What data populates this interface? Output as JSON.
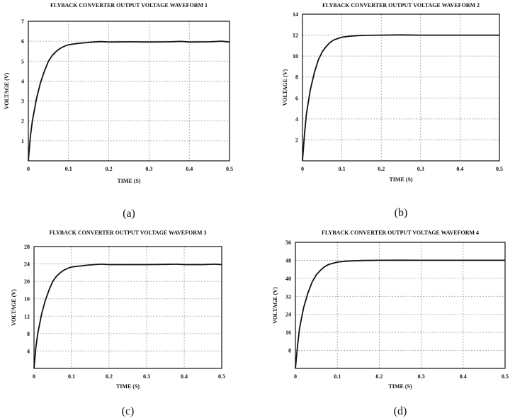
{
  "chart_data": [
    {
      "type": "line",
      "title": "FLYBACK CONVERTER OUTPUT VOLTAGE WAVEFORM 1",
      "xlabel": "TIME (S)",
      "ylabel": "VOLTAGE (V)",
      "caption": "(a)",
      "xlim": [
        0,
        0.5
      ],
      "ylim": [
        0,
        7
      ],
      "x_ticks": [
        0,
        0.1,
        0.2,
        0.3,
        0.4,
        0.5
      ],
      "x_tick_labels": [
        "0",
        "0.1",
        "0.2",
        "0.3",
        "0.4",
        "0.5"
      ],
      "y_ticks": [
        1,
        2,
        3,
        4,
        5,
        6,
        7
      ],
      "y_tick_labels": [
        "1",
        "2",
        "3",
        "4",
        "5",
        "6",
        "7"
      ],
      "grid": true,
      "series": [
        {
          "x": [
            0,
            0.005,
            0.01,
            0.02,
            0.03,
            0.04,
            0.05,
            0.06,
            0.07,
            0.08,
            0.09,
            0.1,
            0.12,
            0.14,
            0.16,
            0.18,
            0.2,
            0.25,
            0.3,
            0.35,
            0.38,
            0.4,
            0.45,
            0.48,
            0.5
          ],
          "y": [
            0,
            1.2,
            2.0,
            3.1,
            3.9,
            4.5,
            5.0,
            5.3,
            5.5,
            5.65,
            5.75,
            5.82,
            5.88,
            5.92,
            5.96,
            5.98,
            5.96,
            5.97,
            5.96,
            5.97,
            5.99,
            5.96,
            5.97,
            6.0,
            5.96
          ]
        }
      ]
    },
    {
      "type": "line",
      "title": "FLYBACK CONVERTER OUTPUT VOLTAGE WAVEFORM 2",
      "xlabel": "TIME (S)",
      "ylabel": "VOLTAGE (V)",
      "caption": "(b)",
      "xlim": [
        0,
        0.5
      ],
      "ylim": [
        0,
        14
      ],
      "x_ticks": [
        0,
        0.1,
        0.2,
        0.3,
        0.4,
        0.5
      ],
      "x_tick_labels": [
        "0",
        "0.1",
        "0.2",
        "0.3",
        "0.4",
        "0.5"
      ],
      "y_ticks": [
        2,
        4,
        6,
        8,
        10,
        12,
        14
      ],
      "y_tick_labels": [
        "2",
        "4",
        "6",
        "8",
        "10",
        "12",
        "14"
      ],
      "grid": true,
      "series": [
        {
          "x": [
            0,
            0.005,
            0.01,
            0.02,
            0.03,
            0.04,
            0.05,
            0.06,
            0.07,
            0.08,
            0.1,
            0.12,
            0.14,
            0.16,
            0.2,
            0.25,
            0.3,
            0.35,
            0.4,
            0.45,
            0.5
          ],
          "y": [
            0,
            2.5,
            4.5,
            6.8,
            8.4,
            9.6,
            10.4,
            10.9,
            11.3,
            11.55,
            11.8,
            11.9,
            11.95,
            11.98,
            12.0,
            12.02,
            12.0,
            12.0,
            12.0,
            12.0,
            12.0
          ]
        }
      ]
    },
    {
      "type": "line",
      "title": "FLYBACK CONVERTER OUTPUT VOLTAGE WAVEFORM 3",
      "xlabel": "TIME (S)",
      "ylabel": "VOLTAGE (V)",
      "caption": "(c)",
      "xlim": [
        0,
        0.5
      ],
      "ylim": [
        0,
        28
      ],
      "x_ticks": [
        0,
        0.1,
        0.2,
        0.3,
        0.4,
        0.5
      ],
      "x_tick_labels": [
        "0",
        "0.1",
        "0.2",
        "0.3",
        "0.4",
        "0.5"
      ],
      "y_ticks": [
        4,
        8,
        12,
        16,
        20,
        24,
        28
      ],
      "y_tick_labels": [
        "4",
        "8",
        "12",
        "16",
        "20",
        "24",
        "28"
      ],
      "grid": true,
      "series": [
        {
          "x": [
            0,
            0.005,
            0.01,
            0.02,
            0.03,
            0.04,
            0.05,
            0.06,
            0.07,
            0.08,
            0.09,
            0.1,
            0.12,
            0.14,
            0.16,
            0.18,
            0.2,
            0.25,
            0.3,
            0.35,
            0.38,
            0.4,
            0.45,
            0.48,
            0.5
          ],
          "y": [
            0,
            4.8,
            8.0,
            12.4,
            15.6,
            18.0,
            20.0,
            21.2,
            22.0,
            22.6,
            23.0,
            23.3,
            23.5,
            23.7,
            23.85,
            23.95,
            23.85,
            23.85,
            23.85,
            23.9,
            23.95,
            23.85,
            23.85,
            23.95,
            23.85
          ]
        }
      ]
    },
    {
      "type": "line",
      "title": "FLYBACK CONVERTER OUTPUT VOLTAGE WAVEFORM 4",
      "xlabel": "TIME (S)",
      "ylabel": "VOLTAGE (V)",
      "caption": "(d)",
      "xlim": [
        0,
        0.5
      ],
      "ylim": [
        0,
        56
      ],
      "x_ticks": [
        0,
        0.1,
        0.2,
        0.3,
        0.4,
        0.5
      ],
      "x_tick_labels": [
        "0",
        "0.1",
        "0.2",
        "0.3",
        "0.4",
        "0.5"
      ],
      "y_ticks": [
        8,
        16,
        24,
        32,
        40,
        48,
        56
      ],
      "y_tick_labels": [
        "8",
        "16",
        "24",
        "32",
        "40",
        "48",
        "56"
      ],
      "grid": true,
      "series": [
        {
          "x": [
            0,
            0.005,
            0.01,
            0.02,
            0.03,
            0.04,
            0.05,
            0.06,
            0.07,
            0.08,
            0.1,
            0.12,
            0.14,
            0.16,
            0.2,
            0.25,
            0.3,
            0.35,
            0.4,
            0.45,
            0.5
          ],
          "y": [
            0,
            10.0,
            18.0,
            27.2,
            33.6,
            38.4,
            41.6,
            43.6,
            45.2,
            46.2,
            47.2,
            47.6,
            47.8,
            47.9,
            48.0,
            48.05,
            48.0,
            48.0,
            48.0,
            48.0,
            48.0
          ]
        }
      ]
    }
  ]
}
